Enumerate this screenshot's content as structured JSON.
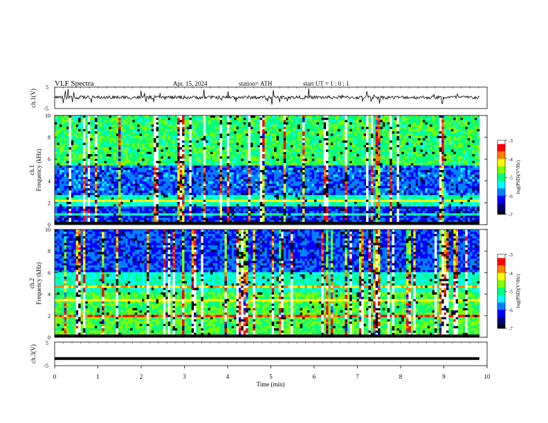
{
  "header": {
    "title": "VLF  Spectra",
    "date": "Apr. 15, 2024",
    "station": "station= ATH",
    "start_ut": "start  UT  =    1  : 0   : 1"
  },
  "colors": {
    "colormap": [
      "#000000",
      "#00007f",
      "#0000ff",
      "#007fff",
      "#00ffff",
      "#00ff7f",
      "#7fff00",
      "#ffff00",
      "#ff7f00",
      "#ff0000",
      "#ffffff"
    ],
    "waveform": "#000000"
  },
  "chart_data": [
    {
      "type": "line",
      "panel": "ch1-waveform",
      "ylabel": "ch.1(V)",
      "ylim": [
        -5,
        5
      ],
      "yticks": [
        "5",
        "-5"
      ],
      "description_series": "noisy waveform centred slightly above 0 V"
    },
    {
      "type": "heatmap",
      "panel": "ch1-spectrogram",
      "ylabel": "ch.1",
      "ylabel2": "Frequency  (kHz)",
      "ylim": [
        0,
        10
      ],
      "yticks": [
        "0",
        "2",
        "4",
        "6",
        "8",
        "10"
      ],
      "colorbar": {
        "label": "log(PSD)(V²/Hz)",
        "range": [
          -7,
          -3
        ],
        "ticks": [
          "-3",
          "-4",
          "-5",
          "-6",
          "-7"
        ]
      }
    },
    {
      "type": "heatmap",
      "panel": "ch2-spectrogram",
      "ylabel": "ch.2",
      "ylabel2": "Frequency  (kHz)",
      "ylim": [
        0,
        10
      ],
      "yticks": [
        "0",
        "2",
        "4",
        "6",
        "8",
        "10"
      ],
      "colorbar": {
        "label": "log(PSD)(V²/Hz)",
        "range": [
          -7,
          -3
        ],
        "ticks": [
          "-3",
          "-4",
          "-5",
          "-6",
          "-7"
        ]
      }
    },
    {
      "type": "line",
      "panel": "ch3-waveform",
      "ylabel": "ch.3(V)",
      "ylim": [
        -5,
        5
      ],
      "yticks": [
        "5",
        "-5"
      ],
      "value": -2
    }
  ],
  "xaxis": {
    "label": "Time  (min)",
    "range": [
      0,
      10
    ],
    "ticks": [
      "0",
      "1",
      "2",
      "3",
      "4",
      "5",
      "6",
      "7",
      "8",
      "9",
      "10"
    ],
    "data_end": 9.82
  }
}
